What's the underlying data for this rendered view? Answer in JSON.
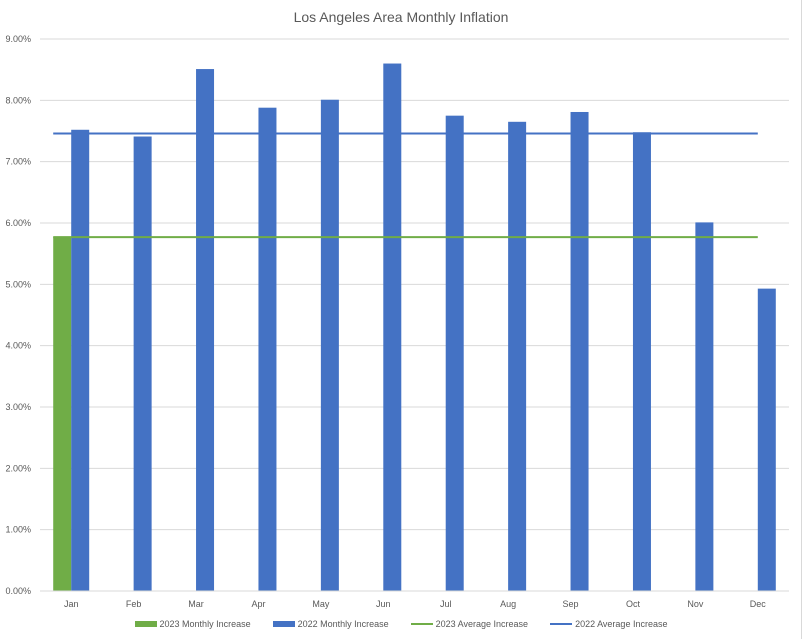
{
  "chart_data": {
    "type": "bar",
    "title": "Los Angeles Area Monthly Inflation",
    "xlabel": "",
    "ylabel": "",
    "categories": [
      "Jan",
      "Feb",
      "Mar",
      "Apr",
      "May",
      "Jun",
      "Jul",
      "Aug",
      "Sep",
      "Oct",
      "Nov",
      "Dec"
    ],
    "ylim": [
      0,
      9
    ],
    "yticks": [
      "0.00%",
      "1.00%",
      "2.00%",
      "3.00%",
      "4.00%",
      "5.00%",
      "6.00%",
      "7.00%",
      "8.00%",
      "9.00%"
    ],
    "grid": true,
    "legend_position": "bottom",
    "series": [
      {
        "name": "2023 Monthly Increase",
        "kind": "bar",
        "color": "#70ad47",
        "values": [
          5.77,
          null,
          null,
          null,
          null,
          null,
          null,
          null,
          null,
          null,
          null,
          null
        ]
      },
      {
        "name": "2022 Monthly Increase",
        "kind": "bar",
        "color": "#4472c4",
        "values": [
          7.52,
          7.41,
          8.51,
          7.88,
          8.01,
          8.6,
          7.75,
          7.65,
          7.81,
          7.48,
          6.01,
          4.93
        ]
      },
      {
        "name": "2023 Average Increase",
        "kind": "line",
        "color": "#70ad47",
        "values": [
          5.77,
          5.77,
          5.77,
          5.77,
          5.77,
          5.77,
          5.77,
          5.77,
          5.77,
          5.77,
          5.77,
          5.77
        ]
      },
      {
        "name": "2022 Average Increase",
        "kind": "line",
        "color": "#4472c4",
        "values": [
          7.46,
          7.46,
          7.46,
          7.46,
          7.46,
          7.46,
          7.46,
          7.46,
          7.46,
          7.46,
          7.46,
          7.46
        ]
      }
    ]
  }
}
